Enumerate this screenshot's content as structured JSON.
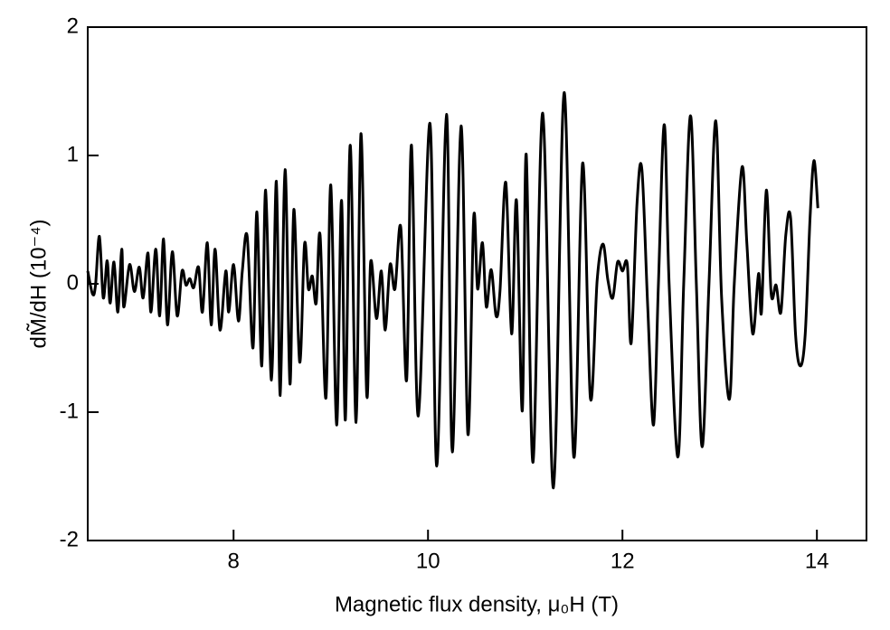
{
  "chart_data": {
    "type": "line",
    "x_label": "Magnetic flux density, μ₀H (T)",
    "y_label": "dM̃/dH (10⁻⁴)",
    "xlim": [
      6.5,
      14.51
    ],
    "ylim": [
      -2,
      2
    ],
    "xticks": [
      8,
      10,
      12,
      14
    ],
    "yticks": [
      -2,
      -1,
      0,
      1,
      2
    ],
    "series": [
      {
        "color": "#000000",
        "x": [
          6.5,
          6.55,
          6.58,
          6.62,
          6.66,
          6.7,
          6.73,
          6.77,
          6.81,
          6.85,
          6.87,
          6.93,
          6.98,
          7.03,
          7.07,
          7.12,
          7.15,
          7.2,
          7.24,
          7.28,
          7.32,
          7.37,
          7.42,
          7.47,
          7.51,
          7.55,
          7.59,
          7.64,
          7.68,
          7.73,
          7.77,
          7.81,
          7.86,
          7.92,
          7.95,
          8.0,
          8.05,
          8.09,
          8.14,
          8.2,
          8.24,
          8.29,
          8.33,
          8.39,
          8.44,
          8.48,
          8.53,
          8.58,
          8.62,
          8.68,
          8.73,
          8.77,
          8.81,
          8.85,
          8.89,
          8.95,
          9.0,
          9.06,
          9.11,
          9.15,
          9.2,
          9.26,
          9.31,
          9.37,
          9.41,
          9.47,
          9.52,
          9.56,
          9.61,
          9.66,
          9.72,
          9.78,
          9.83,
          9.9,
          10.02,
          10.09,
          10.19,
          10.25,
          10.34,
          10.41,
          10.47,
          10.51,
          10.56,
          10.6,
          10.65,
          10.7,
          10.74,
          10.8,
          10.86,
          10.91,
          10.97,
          11.01,
          11.08,
          11.18,
          11.29,
          11.4,
          11.5,
          11.59,
          11.67,
          11.74,
          11.8,
          11.85,
          11.9,
          11.95,
          12.0,
          12.05,
          12.09,
          12.15,
          12.2,
          12.26,
          12.32,
          12.37,
          12.43,
          12.48,
          12.57,
          12.63,
          12.7,
          12.76,
          12.82,
          12.89,
          12.96,
          13.02,
          13.1,
          13.15,
          13.23,
          13.28,
          13.34,
          13.4,
          13.43,
          13.48,
          13.53,
          13.58,
          13.63,
          13.68,
          13.73,
          13.78,
          13.83,
          13.88,
          13.93,
          13.97,
          14.01
        ],
        "values": [
          0.1,
          -0.08,
          -0.01,
          0.37,
          -0.11,
          0.18,
          -0.15,
          0.17,
          -0.22,
          0.27,
          -0.18,
          0.15,
          -0.06,
          0.13,
          -0.11,
          0.24,
          -0.22,
          0.27,
          -0.25,
          0.35,
          -0.32,
          0.25,
          -0.25,
          0.1,
          -0.01,
          0.04,
          -0.03,
          0.13,
          -0.22,
          0.32,
          -0.32,
          0.27,
          -0.36,
          0.1,
          -0.22,
          0.15,
          -0.29,
          0.1,
          0.37,
          -0.5,
          0.56,
          -0.64,
          0.73,
          -0.75,
          0.8,
          -0.87,
          0.89,
          -0.78,
          0.58,
          -0.61,
          0.31,
          -0.04,
          0.06,
          -0.15,
          0.38,
          -0.89,
          0.77,
          -1.1,
          0.65,
          -1.06,
          1.08,
          -1.08,
          1.17,
          -0.87,
          0.17,
          -0.27,
          0.1,
          -0.36,
          0.15,
          -0.04,
          0.44,
          -0.75,
          1.08,
          -1.03,
          1.25,
          -1.42,
          1.32,
          -1.31,
          1.23,
          -1.17,
          0.52,
          -0.04,
          0.32,
          -0.18,
          0.11,
          -0.25,
          -0.06,
          0.79,
          -0.39,
          0.65,
          -0.99,
          1.01,
          -1.39,
          1.33,
          -1.59,
          1.49,
          -1.35,
          0.94,
          -0.89,
          0.03,
          0.31,
          0.03,
          -0.11,
          0.17,
          0.1,
          0.15,
          -0.46,
          0.63,
          0.89,
          -0.18,
          -1.1,
          0.0,
          1.24,
          0.0,
          -1.35,
          0.0,
          1.31,
          0.0,
          -1.27,
          0.0,
          1.27,
          -0.11,
          -0.9,
          0.0,
          0.91,
          0.31,
          -0.39,
          0.08,
          -0.22,
          0.73,
          -0.08,
          -0.01,
          -0.22,
          0.38,
          0.51,
          -0.39,
          -0.64,
          -0.39,
          0.52,
          0.96,
          0.59
        ]
      }
    ]
  }
}
